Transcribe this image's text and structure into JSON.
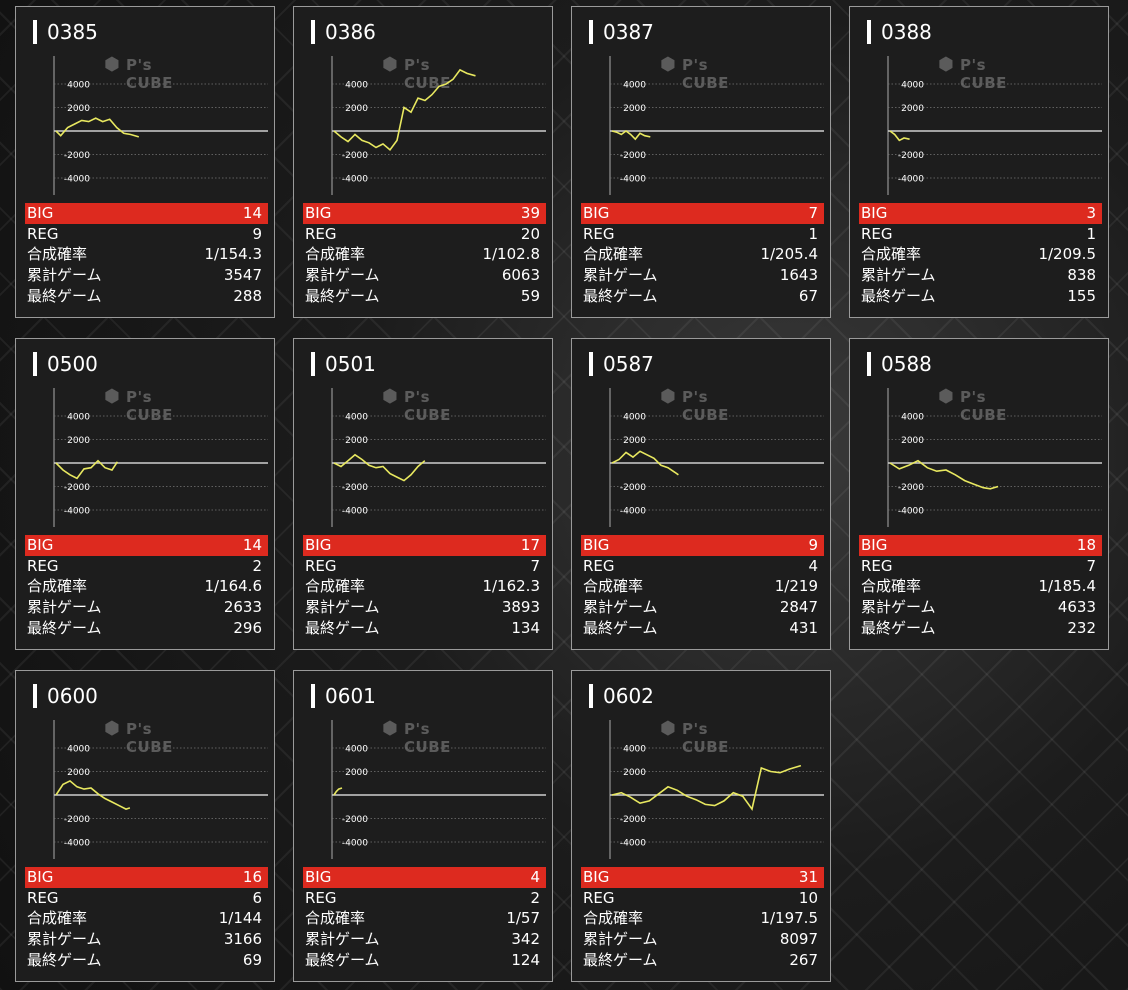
{
  "labels": {
    "big": "BIG",
    "reg": "REG",
    "rate": "合成確率",
    "total": "累計ゲーム",
    "last": "最終ゲーム"
  },
  "watermark": {
    "text": "P's CUBE",
    "icon": "hexagon-logo-icon"
  },
  "machines": [
    {
      "id": "0385",
      "big": "14",
      "reg": "9",
      "rate": "1/154.3",
      "total": "3547",
      "last": "288"
    },
    {
      "id": "0386",
      "big": "39",
      "reg": "20",
      "rate": "1/102.8",
      "total": "6063",
      "last": "59"
    },
    {
      "id": "0387",
      "big": "7",
      "reg": "1",
      "rate": "1/205.4",
      "total": "1643",
      "last": "67"
    },
    {
      "id": "0388",
      "big": "3",
      "reg": "1",
      "rate": "1/209.5",
      "total": "838",
      "last": "155"
    },
    {
      "id": "0500",
      "big": "14",
      "reg": "2",
      "rate": "1/164.6",
      "total": "2633",
      "last": "296"
    },
    {
      "id": "0501",
      "big": "17",
      "reg": "7",
      "rate": "1/162.3",
      "total": "3893",
      "last": "134"
    },
    {
      "id": "0587",
      "big": "9",
      "reg": "4",
      "rate": "1/219",
      "total": "2847",
      "last": "431"
    },
    {
      "id": "0588",
      "big": "18",
      "reg": "7",
      "rate": "1/185.4",
      "total": "4633",
      "last": "232"
    },
    {
      "id": "0600",
      "big": "16",
      "reg": "6",
      "rate": "1/144",
      "total": "3166",
      "last": "69"
    },
    {
      "id": "0601",
      "big": "4",
      "reg": "2",
      "rate": "1/57",
      "total": "342",
      "last": "124"
    },
    {
      "id": "0602",
      "big": "31",
      "reg": "10",
      "rate": "1/197.5",
      "total": "8097",
      "last": "267"
    }
  ],
  "chart_data": [
    {
      "type": "line",
      "machine": "0385",
      "ylim": [
        -6000,
        6000
      ],
      "yticks": [
        4000,
        2000,
        -2000,
        -4000
      ],
      "grid": true,
      "line_color": "#e8e860",
      "x": [
        0,
        200,
        500,
        800,
        1100,
        1400,
        1700,
        2000,
        2300,
        2600,
        2900,
        3200,
        3547
      ],
      "y": [
        0,
        -400,
        300,
        600,
        900,
        800,
        1100,
        800,
        1000,
        300,
        -200,
        -300,
        -500
      ]
    },
    {
      "type": "line",
      "machine": "0386",
      "ylim": [
        -6000,
        6000
      ],
      "yticks": [
        4000,
        2000,
        -2000,
        -4000
      ],
      "grid": true,
      "line_color": "#e8e860",
      "x": [
        0,
        300,
        600,
        900,
        1200,
        1500,
        1800,
        2100,
        2400,
        2700,
        3000,
        3300,
        3600,
        3900,
        4200,
        4500,
        4800,
        5100,
        5400,
        5700,
        6063
      ],
      "y": [
        0,
        -500,
        -900,
        -300,
        -800,
        -1000,
        -1400,
        -1100,
        -1600,
        -800,
        2000,
        1600,
        2800,
        2600,
        3100,
        3800,
        4000,
        4400,
        5200,
        4900,
        4700
      ]
    },
    {
      "type": "line",
      "machine": "0387",
      "ylim": [
        -6000,
        6000
      ],
      "yticks": [
        4000,
        2000,
        -2000,
        -4000
      ],
      "grid": true,
      "line_color": "#e8e860",
      "x": [
        0,
        200,
        400,
        600,
        800,
        1000,
        1200,
        1400,
        1643
      ],
      "y": [
        0,
        -100,
        -300,
        0,
        -300,
        -700,
        -200,
        -400,
        -500
      ]
    },
    {
      "type": "line",
      "machine": "0388",
      "ylim": [
        -6000,
        6000
      ],
      "yticks": [
        4000,
        2000,
        -2000,
        -4000
      ],
      "grid": true,
      "line_color": "#e8e860",
      "x": [
        0,
        200,
        400,
        600,
        838
      ],
      "y": [
        0,
        -300,
        -800,
        -600,
        -700
      ]
    },
    {
      "type": "line",
      "machine": "0500",
      "ylim": [
        -6000,
        6000
      ],
      "yticks": [
        4000,
        2000,
        -2000,
        -4000
      ],
      "grid": true,
      "line_color": "#e8e860",
      "x": [
        0,
        300,
        600,
        900,
        1200,
        1500,
        1800,
        2100,
        2400,
        2633
      ],
      "y": [
        0,
        -600,
        -1000,
        -1300,
        -500,
        -400,
        200,
        -400,
        -600,
        100
      ]
    },
    {
      "type": "line",
      "machine": "0501",
      "ylim": [
        -6000,
        6000
      ],
      "yticks": [
        4000,
        2000,
        -2000,
        -4000
      ],
      "grid": true,
      "line_color": "#e8e860",
      "x": [
        0,
        300,
        600,
        900,
        1200,
        1500,
        1800,
        2100,
        2400,
        2700,
        3000,
        3300,
        3600,
        3893
      ],
      "y": [
        0,
        -300,
        200,
        700,
        300,
        -200,
        -400,
        -300,
        -900,
        -1200,
        -1500,
        -1000,
        -300,
        200
      ]
    },
    {
      "type": "line",
      "machine": "0587",
      "ylim": [
        -6000,
        6000
      ],
      "yticks": [
        4000,
        2000,
        -2000,
        -4000
      ],
      "grid": true,
      "line_color": "#e8e860",
      "x": [
        0,
        300,
        600,
        900,
        1200,
        1500,
        1800,
        2100,
        2400,
        2700,
        2847
      ],
      "y": [
        0,
        300,
        900,
        500,
        1000,
        700,
        400,
        -200,
        -400,
        -800,
        -1000
      ]
    },
    {
      "type": "line",
      "machine": "0588",
      "ylim": [
        -6000,
        6000
      ],
      "yticks": [
        4000,
        2000,
        -2000,
        -4000
      ],
      "grid": true,
      "line_color": "#e8e860",
      "x": [
        0,
        400,
        800,
        1200,
        1600,
        2000,
        2400,
        2800,
        3200,
        3600,
        4000,
        4300,
        4633
      ],
      "y": [
        0,
        -500,
        -200,
        200,
        -400,
        -700,
        -600,
        -1000,
        -1500,
        -1800,
        -2100,
        -2200,
        -2000
      ]
    },
    {
      "type": "line",
      "machine": "0600",
      "ylim": [
        -6000,
        6000
      ],
      "yticks": [
        4000,
        2000,
        -2000,
        -4000
      ],
      "grid": true,
      "line_color": "#e8e860",
      "x": [
        0,
        300,
        600,
        900,
        1200,
        1500,
        1800,
        2100,
        2400,
        2700,
        3000,
        3166
      ],
      "y": [
        0,
        900,
        1200,
        700,
        500,
        600,
        100,
        -300,
        -600,
        -900,
        -1200,
        -1100
      ]
    },
    {
      "type": "line",
      "machine": "0601",
      "ylim": [
        -6000,
        6000
      ],
      "yticks": [
        4000,
        2000,
        -2000,
        -4000
      ],
      "grid": true,
      "line_color": "#e8e860",
      "x": [
        0,
        100,
        200,
        342
      ],
      "y": [
        0,
        300,
        500,
        600
      ]
    },
    {
      "type": "line",
      "machine": "0602",
      "ylim": [
        -6000,
        6000
      ],
      "yticks": [
        4000,
        2000,
        -2000,
        -4000
      ],
      "grid": true,
      "line_color": "#e8e860",
      "x": [
        0,
        400,
        800,
        1200,
        1600,
        2000,
        2400,
        2800,
        3200,
        3600,
        4000,
        4400,
        4800,
        5200,
        5600,
        6000,
        6400,
        6800,
        7200,
        7600,
        8097
      ],
      "y": [
        0,
        200,
        -200,
        -700,
        -500,
        100,
        700,
        400,
        -100,
        -400,
        -800,
        -900,
        -500,
        200,
        -100,
        -1200,
        2300,
        2000,
        1900,
        2200,
        2500
      ]
    }
  ]
}
